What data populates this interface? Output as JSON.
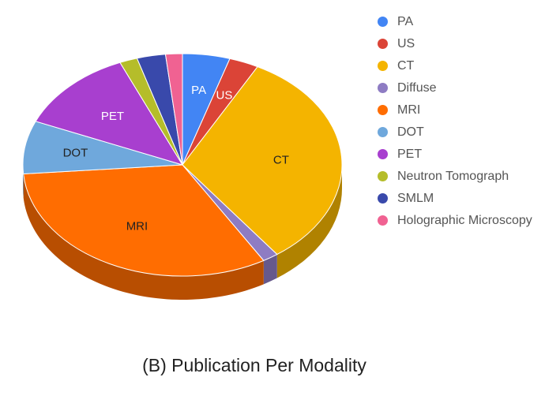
{
  "caption": "(B) Publication Per Modality",
  "chart_data": {
    "type": "pie",
    "style": "3d",
    "title": "",
    "legend_position": "right",
    "categories": [
      "PA",
      "US",
      "CT",
      "Diffuse",
      "MRI",
      "DOT",
      "PET",
      "Neutron Tomograph",
      "SMLM",
      "Holographic Microscopy"
    ],
    "values": [
      4.8,
      3.0,
      32.1,
      1.6,
      32.2,
      7.7,
      12.2,
      1.8,
      2.9,
      1.7
    ],
    "slice_labels": [
      "PA",
      "US",
      "CT",
      "",
      "MRI",
      "DOT",
      "PET",
      "",
      "",
      ""
    ],
    "colors": [
      "#4285f4",
      "#db4437",
      "#f4b400",
      "#8e7cc3",
      "#ff6d01",
      "#6fa8dc",
      "#a83fcf",
      "#b5bd2a",
      "#3949ab",
      "#f06292"
    ]
  }
}
